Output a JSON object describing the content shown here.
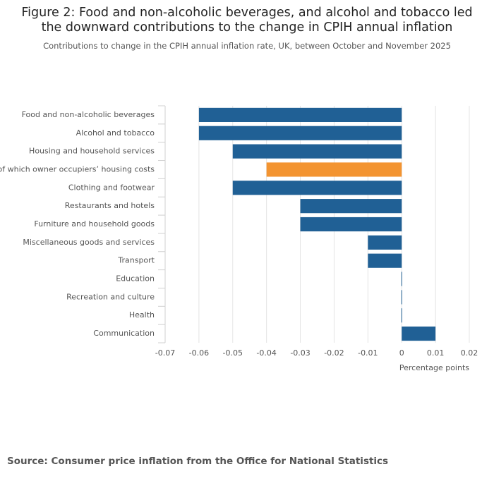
{
  "chart_data": {
    "type": "bar",
    "orientation": "horizontal",
    "title": "Figure 2: Food and non-alcoholic beverages, and alcohol and tobacco led the downward contributions to the change in CPIH annual inflation",
    "subtitle": "Contributions to change in the CPIH annual inflation rate, UK, between October and November 2025",
    "x_label": "Percentage points",
    "categories": [
      "Food and non-alcoholic beverages",
      "Alcohol and tobacco",
      "Housing and household services",
      "of which owner occupiers’ housing costs",
      "Clothing and footwear",
      "Restaurants and hotels",
      "Furniture and household goods",
      "Miscellaneous goods and services",
      "Transport",
      "Education",
      "Recreation and culture",
      "Health",
      "Communication"
    ],
    "values": [
      -0.06,
      -0.06,
      -0.05,
      -0.04,
      -0.05,
      -0.03,
      -0.03,
      -0.01,
      -0.01,
      0,
      0,
      0,
      0.01
    ],
    "colors": [
      "#206095",
      "#206095",
      "#206095",
      "#f39431",
      "#206095",
      "#206095",
      "#206095",
      "#206095",
      "#206095",
      "#206095",
      "#206095",
      "#206095",
      "#206095"
    ],
    "xlim": [
      -0.07,
      0.02
    ],
    "xticks": [
      -0.07,
      -0.06,
      -0.05,
      -0.04,
      -0.03,
      -0.02,
      -0.01,
      0,
      0.01,
      0.02
    ],
    "grid": true,
    "source": "Source: Consumer price inflation from the Office for National Statistics"
  }
}
